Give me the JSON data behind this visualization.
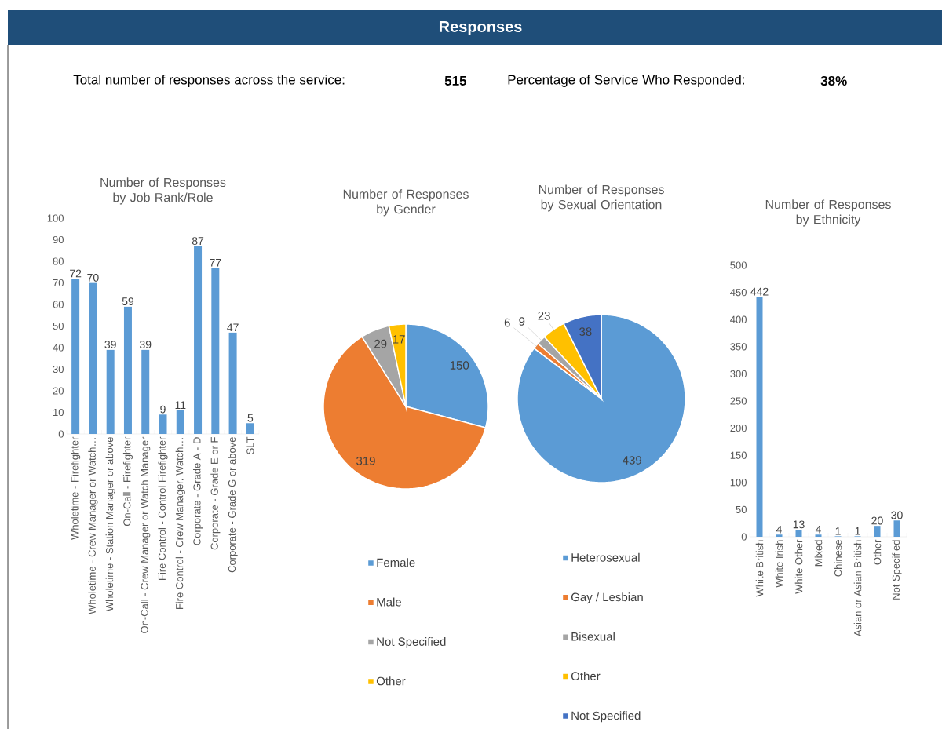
{
  "chart_data": [
    {
      "type": "other",
      "title": "Responses",
      "annotations": [
        "Total number of responses across the service:",
        "515",
        "Percentage of Service Who Responded:",
        "38%"
      ]
    },
    {
      "type": "bar",
      "title": "Number of Responses by Job Rank/Role",
      "categories": [
        "Wholetime - Firefighter",
        "Wholetime - Crew Manager or Watch…",
        "Wholetime - Station Manager or above",
        "On-Call - Firefighter",
        "On-Call - Crew Manager or Watch Manager",
        "Fire Control - Control Firefighter",
        "Fire Control - Crew Manager, Watch…",
        "Corporate - Grade A - D",
        "Corporate - Grade E or F",
        "Corporate - Grade G or above",
        "SLT"
      ],
      "values": [
        72,
        70,
        39,
        59,
        39,
        9,
        11,
        87,
        77,
        47,
        5
      ],
      "color": "#5b9bd5",
      "ylim": [
        0,
        100
      ],
      "yticks": [
        0,
        10,
        20,
        30,
        40,
        50,
        60,
        70,
        80,
        90,
        100
      ],
      "data_labels": true
    },
    {
      "type": "pie",
      "title": "Number of Responses by Gender",
      "categories": [
        "Female",
        "Male",
        "Not Specified",
        "Other"
      ],
      "values": [
        150,
        319,
        29,
        17
      ],
      "colors": [
        "#5b9bd5",
        "#ed7d31",
        "#a5a5a5",
        "#ffc000"
      ],
      "data_labels": true,
      "legend": "bottom"
    },
    {
      "type": "pie",
      "title": "Number of Responses by Sexual Orientation",
      "categories": [
        "Heterosexual",
        "Gay / Lesbian",
        "Bisexual",
        "Other",
        "Not Specified"
      ],
      "values": [
        439,
        6,
        9,
        23,
        38
      ],
      "colors": [
        "#5b9bd5",
        "#ed7d31",
        "#a5a5a5",
        "#ffc000",
        "#4472c4"
      ],
      "data_labels": true,
      "legend": "bottom"
    },
    {
      "type": "bar",
      "title": "Number of Responses by Ethnicity",
      "categories": [
        "White British",
        "White Irish",
        "White Other",
        "Mixed",
        "Chinese",
        "Asian or Asian British",
        "Other",
        "Not Specified"
      ],
      "values": [
        442,
        4,
        13,
        4,
        1,
        1,
        20,
        30
      ],
      "color": "#5b9bd5",
      "ylim": [
        0,
        500
      ],
      "yticks": [
        0,
        50,
        100,
        150,
        200,
        250,
        300,
        350,
        400,
        450,
        500
      ],
      "data_labels": true
    }
  ]
}
